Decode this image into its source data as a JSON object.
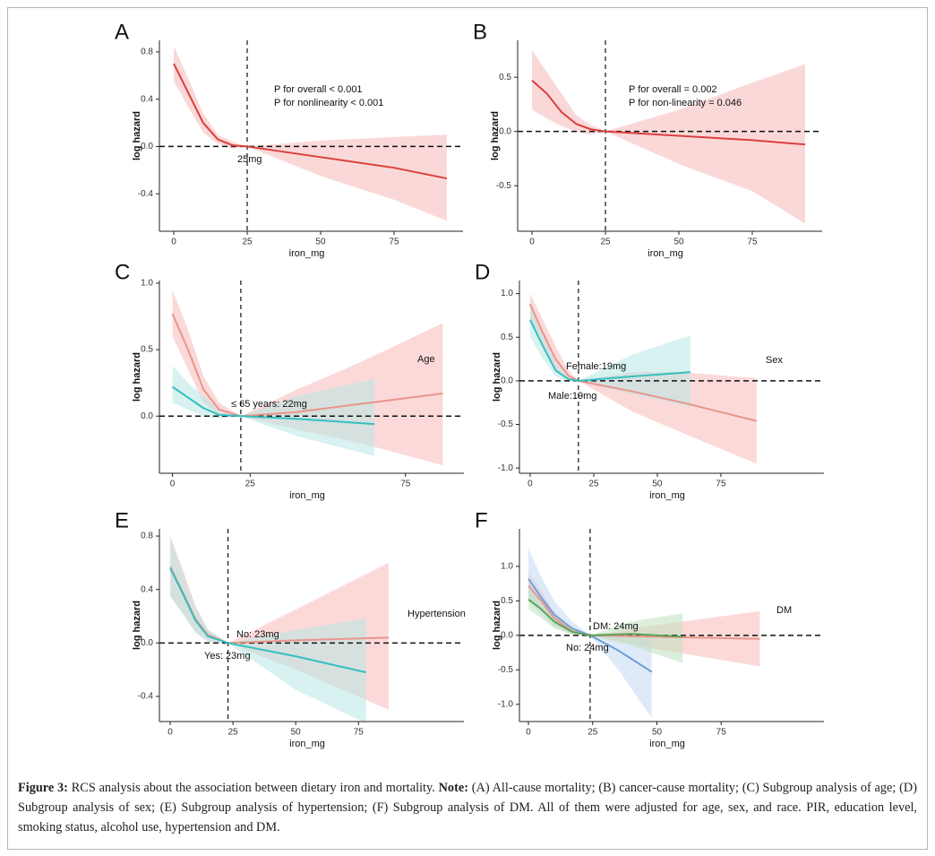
{
  "chart_data": [
    {
      "type": "line",
      "title": "A",
      "xlabel": "iron_mg",
      "ylabel": "log hazard",
      "xlim": [
        -4.9,
        98.5
      ],
      "ylim": [
        -0.717,
        0.898
      ],
      "xticks": [
        0,
        25,
        50,
        75
      ],
      "yticks": [
        -0.4,
        {
          "value": 0,
          "label": "0.0"
        },
        0.4,
        0.8
      ],
      "hline": 0,
      "vline": 25,
      "annotations": [
        "P for overall < 0.001",
        "P for nonlinearity < 0.001",
        "25mg"
      ],
      "series": [
        {
          "color": "#d8403f",
          "band_color": "#f7b8b8",
          "x": [
            0,
            5,
            10,
            15,
            20,
            25,
            50,
            75,
            93
          ],
          "values": [
            0.7,
            0.45,
            0.2,
            0.06,
            0.01,
            0,
            -0.09,
            -0.18,
            -0.27
          ],
          "lower": [
            0.55,
            0.33,
            0.12,
            0.02,
            -0.02,
            0,
            -0.25,
            -0.45,
            -0.63
          ],
          "upper": [
            0.85,
            0.57,
            0.28,
            0.1,
            0.04,
            0,
            0.05,
            0.08,
            0.1
          ]
        }
      ]
    },
    {
      "type": "line",
      "title": "B",
      "xlabel": "iron_mg",
      "ylabel": "log hazard",
      "xlim": [
        -4.9,
        98.8
      ],
      "ylim": [
        -0.92,
        0.84
      ],
      "xticks": [
        0,
        25,
        50,
        75
      ],
      "yticks": [
        -0.5,
        {
          "value": 0,
          "label": "0.0"
        },
        0.5
      ],
      "hline": 0,
      "vline": 25,
      "annotations": [
        "P for overall = 0.002",
        "P for non-linearity = 0.046"
      ],
      "series": [
        {
          "color": "#d8403f",
          "band_color": "#f7b8b8",
          "x": [
            0,
            5,
            10,
            15,
            20,
            25,
            50,
            75,
            93
          ],
          "values": [
            0.47,
            0.35,
            0.18,
            0.07,
            0.02,
            0,
            -0.04,
            -0.08,
            -0.12
          ],
          "lower": [
            0.2,
            0.12,
            0.05,
            0,
            -0.03,
            0,
            -0.3,
            -0.55,
            -0.85
          ],
          "upper": [
            0.75,
            0.55,
            0.35,
            0.15,
            0.06,
            0,
            0.2,
            0.45,
            0.62
          ]
        }
      ]
    },
    {
      "type": "line",
      "title": "C",
      "xlabel": "iron_mg",
      "ylabel": "log hazard",
      "legend_title": "Age",
      "xlim": [
        -4.2,
        93.8
      ],
      "ylim": [
        -0.43,
        1.02
      ],
      "xticks": [
        0,
        25,
        75
      ],
      "yticks": [
        {
          "value": 0,
          "label": "0.0"
        },
        0.5,
        {
          "value": 1,
          "label": "1.0"
        }
      ],
      "hline": 0,
      "vline": 22,
      "annotations": [
        "≤ 65 years: 22mg"
      ],
      "series": [
        {
          "color": "#e8958c",
          "band_color": "#f9b9b9",
          "x": [
            0,
            5,
            10,
            15,
            22,
            40,
            60,
            87
          ],
          "values": [
            0.77,
            0.5,
            0.2,
            0.05,
            0,
            0.03,
            0.09,
            0.17
          ],
          "lower": [
            0.6,
            0.35,
            0.1,
            0.01,
            0,
            -0.1,
            -0.2,
            -0.37
          ],
          "upper": [
            0.95,
            0.65,
            0.3,
            0.1,
            0,
            0.2,
            0.4,
            0.7
          ]
        },
        {
          "color": "#36bfc0",
          "band_color": "#b7e8e4",
          "x": [
            0,
            5,
            10,
            15,
            22,
            40,
            65
          ],
          "values": [
            0.22,
            0.14,
            0.06,
            0.01,
            0,
            -0.02,
            -0.06
          ],
          "lower": [
            0.1,
            0.05,
            0,
            -0.02,
            0,
            -0.15,
            -0.3
          ],
          "upper": [
            0.38,
            0.25,
            0.15,
            0.05,
            0,
            0.15,
            0.28
          ]
        }
      ]
    },
    {
      "type": "line",
      "title": "D",
      "xlabel": "iron_mg",
      "ylabel": "log hazard",
      "legend_title": "Sex",
      "xlim": [
        -4.2,
        115.5
      ],
      "ylim": [
        -1.06,
        1.15
      ],
      "xticks": [
        0,
        25,
        50,
        75
      ],
      "yticks": [
        {
          "value": -1,
          "label": "-1.0"
        },
        -0.5,
        {
          "value": 0,
          "label": "0.0"
        },
        0.5,
        {
          "value": 1,
          "label": "1.0"
        }
      ],
      "hline": 0,
      "vline": 19,
      "annotations": [
        "Female:19mg",
        "Male:19mg"
      ],
      "series": [
        {
          "color": "#e8958c",
          "band_color": "#f9b9b9",
          "x": [
            0,
            5,
            10,
            15,
            19,
            40,
            60,
            89
          ],
          "values": [
            0.88,
            0.55,
            0.25,
            0.06,
            0,
            -0.12,
            -0.25,
            -0.46
          ],
          "lower": [
            0.72,
            0.4,
            0.1,
            0.01,
            0,
            -0.35,
            -0.6,
            -0.95
          ],
          "upper": [
            1.0,
            0.7,
            0.4,
            0.12,
            0,
            0.1,
            0.1,
            0.03
          ]
        },
        {
          "color": "#36bfc0",
          "band_color": "#b7e8e4",
          "x": [
            0,
            5,
            10,
            15,
            19,
            40,
            63
          ],
          "values": [
            0.7,
            0.4,
            0.12,
            0.02,
            0,
            0.05,
            0.1
          ],
          "lower": [
            0.5,
            0.25,
            0.05,
            -0.01,
            0,
            -0.15,
            -0.3
          ],
          "upper": [
            0.9,
            0.55,
            0.2,
            0.05,
            0,
            0.3,
            0.52
          ]
        }
      ]
    },
    {
      "type": "line",
      "title": "E",
      "xlabel": "iron_mg",
      "ylabel": "log hazard",
      "legend_title": "Hypertension",
      "xlim": [
        -4.3,
        117
      ],
      "ylim": [
        -0.588,
        0.854
      ],
      "xticks": [
        0,
        25,
        50,
        75
      ],
      "yticks": [
        -0.4,
        {
          "value": 0,
          "label": "0.0"
        },
        0.4,
        0.8
      ],
      "hline": 0,
      "vline": 23,
      "annotations": [
        "No: 23mg",
        "Yes: 23mg"
      ],
      "series": [
        {
          "color": "#e8958c",
          "band_color": "#f9b9b9",
          "x": [
            0,
            5,
            10,
            15,
            23,
            50,
            87
          ],
          "values": [
            0.57,
            0.38,
            0.18,
            0.06,
            0,
            0.02,
            0.04
          ],
          "lower": [
            0.35,
            0.22,
            0.08,
            0.01,
            0,
            -0.2,
            -0.5
          ],
          "upper": [
            0.8,
            0.55,
            0.28,
            0.1,
            0,
            0.25,
            0.6
          ]
        },
        {
          "color": "#36bfc0",
          "band_color": "#b7e8e4",
          "x": [
            0,
            5,
            10,
            15,
            23,
            50,
            78
          ],
          "values": [
            0.56,
            0.37,
            0.17,
            0.05,
            0,
            -0.1,
            -0.22
          ],
          "lower": [
            0.35,
            0.22,
            0.08,
            0.01,
            0,
            -0.35,
            -0.6
          ],
          "upper": [
            0.78,
            0.53,
            0.27,
            0.1,
            0,
            0.1,
            0.18
          ]
        }
      ]
    },
    {
      "type": "line",
      "title": "F",
      "xlabel": "iron_mg",
      "ylabel": "log hazard",
      "legend_title": "DM",
      "xlim": [
        -3.5,
        115
      ],
      "ylim": [
        -1.25,
        1.545
      ],
      "xticks": [
        0,
        25,
        50,
        75
      ],
      "yticks": [
        {
          "value": -1,
          "label": "-1.0"
        },
        -0.5,
        {
          "value": 0,
          "label": "0.0"
        },
        0.5,
        {
          "value": 1,
          "label": "1.0"
        }
      ],
      "hline": 0,
      "vline": 24,
      "annotations": [
        "DM: 24mg",
        "No: 24mg"
      ],
      "series": [
        {
          "color": "#e8958c",
          "band_color": "#f9b9b9",
          "x": [
            0,
            5,
            10,
            17,
            24,
            50,
            90
          ],
          "values": [
            0.72,
            0.5,
            0.25,
            0.06,
            0,
            -0.02,
            -0.05
          ],
          "lower": [
            0.55,
            0.35,
            0.15,
            0.02,
            0,
            -0.2,
            -0.45
          ],
          "upper": [
            0.9,
            0.65,
            0.35,
            0.1,
            0,
            0.15,
            0.35
          ]
        },
        {
          "color": "#6f9fd8",
          "band_color": "#c3d8f3",
          "x": [
            0,
            5,
            10,
            17,
            24,
            35,
            48
          ],
          "values": [
            0.82,
            0.55,
            0.3,
            0.1,
            0,
            -0.22,
            -0.53
          ],
          "lower": [
            0.5,
            0.3,
            0.12,
            0.02,
            0,
            -0.5,
            -1.2
          ],
          "upper": [
            1.25,
            0.85,
            0.5,
            0.2,
            0,
            0.0,
            0.05
          ]
        },
        {
          "color": "#5aa55a",
          "band_color": "#bfe2bf",
          "x": [
            0,
            5,
            10,
            17,
            24,
            40,
            60
          ],
          "values": [
            0.52,
            0.38,
            0.2,
            0.05,
            0,
            0.02,
            -0.02
          ],
          "lower": [
            0.38,
            0.25,
            0.1,
            0.01,
            0,
            -0.15,
            -0.4
          ],
          "upper": [
            0.68,
            0.5,
            0.3,
            0.1,
            0,
            0.2,
            0.32
          ]
        }
      ]
    }
  ],
  "caption": {
    "label": "Figure 3:",
    "text": "RCS analysis about the association between dietary iron and mortality.",
    "note_label": "Note:",
    "note": "(A) All-cause mortality; (B) cancer-cause mortality; (C) Subgroup analysis of age; (D) Subgroup analysis of sex; (E) Subgroup analysis of hypertension; (F) Subgroup analysis of DM. All of them were adjusted for age, sex, and race. PIR, education level, smoking status, alcohol use, hypertension and DM."
  }
}
